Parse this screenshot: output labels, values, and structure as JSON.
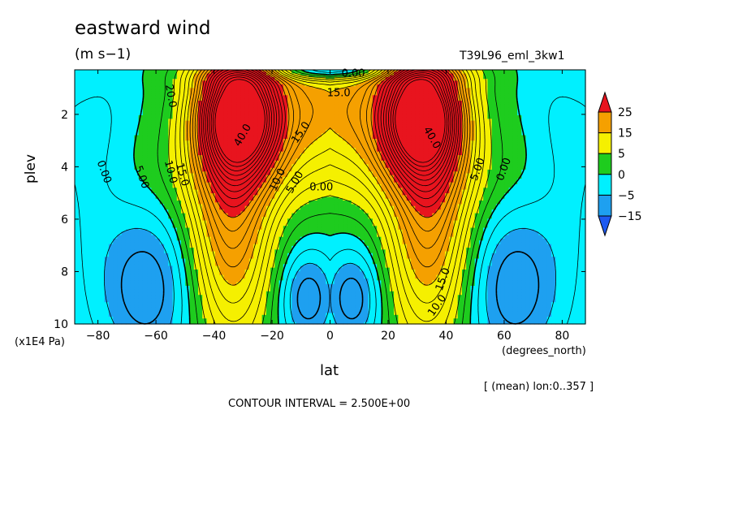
{
  "chart_data": {
    "type": "contour",
    "title": "eastward wind",
    "units": "(m s−1)",
    "run_name": "T39L96_eml_3kw1",
    "xlabel": "lat",
    "x_units": "(degrees_north)",
    "ylabel": "plev",
    "y_scale_label": "(x1E4 Pa)",
    "subset_note": "[ (mean) lon:0..357 ]",
    "contour_interval_note": "CONTOUR INTERVAL = 2.500E+00",
    "xlim": [
      -88,
      88
    ],
    "ylim": [
      0.3,
      10
    ],
    "y_inverted": true,
    "x_ticks": [
      {
        "value": -80,
        "label": "−80"
      },
      {
        "value": -60,
        "label": "−60"
      },
      {
        "value": -40,
        "label": "−40"
      },
      {
        "value": -20,
        "label": "−20"
      },
      {
        "value": 0,
        "label": "0"
      },
      {
        "value": 20,
        "label": "20"
      },
      {
        "value": 40,
        "label": "40"
      },
      {
        "value": 60,
        "label": "60"
      },
      {
        "value": 80,
        "label": "80"
      }
    ],
    "y_ticks": [
      {
        "value": 2,
        "label": "2"
      },
      {
        "value": 4,
        "label": "4"
      },
      {
        "value": 6,
        "label": "6"
      },
      {
        "value": 8,
        "label": "8"
      },
      {
        "value": 10,
        "label": "10"
      }
    ],
    "contour_interval": 2.5,
    "color_levels": [
      {
        "min": 25,
        "color": "#e8141e"
      },
      {
        "min": 15,
        "max": 25,
        "color": "#f5a000"
      },
      {
        "min": 5,
        "max": 15,
        "color": "#f5f000"
      },
      {
        "min": 0,
        "max": 5,
        "color": "#1ecc1e"
      },
      {
        "min": -5,
        "max": 0,
        "color": "#00f0ff"
      },
      {
        "min": -15,
        "max": -5,
        "color": "#1ea0f0"
      },
      {
        "max": -15,
        "color": "#1e5af0"
      }
    ],
    "colorbar_labels": [
      "25",
      "15",
      "5",
      "0",
      "−5",
      "−15"
    ],
    "field_features": [
      {
        "kind": "jet maximum",
        "lat": -31,
        "plev": 2.0,
        "value": 47.5
      },
      {
        "kind": "jet maximum",
        "lat": 31,
        "plev": 2.0,
        "value": 47.5
      },
      {
        "kind": "easterly minimum",
        "lat": -62,
        "plev": 8.8,
        "value": -7.5
      },
      {
        "kind": "easterly minimum",
        "lat": 62,
        "plev": 8.8,
        "value": -7.5
      },
      {
        "kind": "easterly minimum",
        "lat": -8,
        "plev": 9.0,
        "value": -7.5
      },
      {
        "kind": "easterly minimum",
        "lat": 8,
        "plev": 9.0,
        "value": -7.5
      }
    ],
    "contour_labels": [
      {
        "text": "20.0",
        "lat": -55,
        "plev": 1.3,
        "angle": 80
      },
      {
        "text": "40.0",
        "lat": -30,
        "plev": 2.8,
        "angle": -60
      },
      {
        "text": "15.0",
        "lat": -10,
        "plev": 2.7,
        "angle": -55
      },
      {
        "text": "10.0",
        "lat": -18,
        "plev": 4.5,
        "angle": -65
      },
      {
        "text": "5.00",
        "lat": -12,
        "plev": 4.6,
        "angle": -60
      },
      {
        "text": "0.00",
        "lat": -3,
        "plev": 4.8,
        "angle": 0
      },
      {
        "text": "15.0",
        "lat": 3,
        "plev": 1.2,
        "angle": 0
      },
      {
        "text": "0.00",
        "lat": 8,
        "plev": 0.45,
        "angle": 0
      },
      {
        "text": "0.00",
        "lat": -78,
        "plev": 4.2,
        "angle": 70
      },
      {
        "text": "5.00",
        "lat": -65,
        "plev": 4.4,
        "angle": 70
      },
      {
        "text": "10.0",
        "lat": -55,
        "plev": 4.2,
        "angle": 75
      },
      {
        "text": "15.0",
        "lat": -51,
        "plev": 4.3,
        "angle": 75
      },
      {
        "text": "40.0",
        "lat": 35,
        "plev": 2.9,
        "angle": 60
      },
      {
        "text": "5.00",
        "lat": 51,
        "plev": 4.1,
        "angle": -70
      },
      {
        "text": "0.00",
        "lat": 60,
        "plev": 4.1,
        "angle": -70
      },
      {
        "text": "15.0",
        "lat": 39,
        "plev": 8.3,
        "angle": -70
      },
      {
        "text": "10.0",
        "lat": 37,
        "plev": 9.3,
        "angle": -55
      }
    ]
  }
}
